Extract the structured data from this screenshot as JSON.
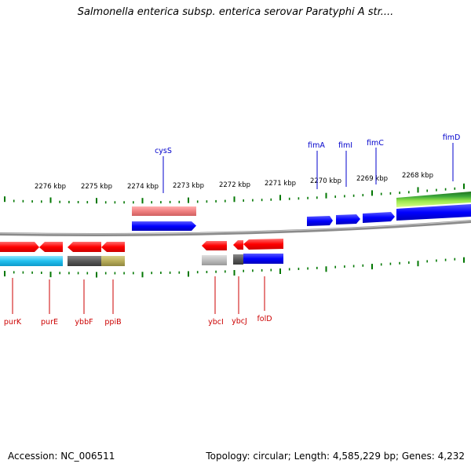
{
  "title": "Salmonella enterica subsp. enterica serovar Paratyphi A str....",
  "accession": "Accession: NC_006511",
  "topology": "Topology: circular; Length: 4,585,229 bp; Genes: 4,232",
  "colors": {
    "forward_label": "#0000cc",
    "reverse_label": "#cc0000",
    "tick": "#007700",
    "backbone": "#888888"
  },
  "scale": {
    "labels": [
      "2276 kbp",
      "2275 kbp",
      "2274 kbp",
      "2273 kbp",
      "2272 kbp",
      "2271 kbp",
      "2270 kbp",
      "2269 kbp",
      "2268 kbp"
    ]
  },
  "genes": {
    "forward": [
      {
        "name": "cysS"
      },
      {
        "name": "fimA"
      },
      {
        "name": "fimI"
      },
      {
        "name": "fimC"
      },
      {
        "name": "fimD"
      }
    ],
    "reverse": [
      {
        "name": "purK"
      },
      {
        "name": "purE"
      },
      {
        "name": "ybbF"
      },
      {
        "name": "ppiB"
      },
      {
        "name": "ybcI"
      },
      {
        "name": "ybcJ"
      },
      {
        "name": "folD"
      }
    ]
  }
}
